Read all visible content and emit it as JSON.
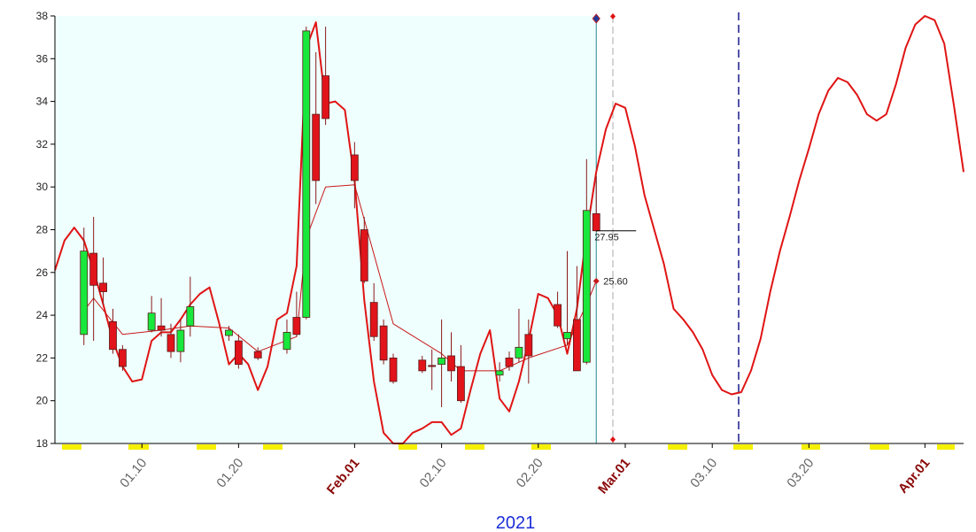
{
  "chart_data": {
    "type": "candlestick",
    "x": [
      4,
      5,
      6,
      7,
      8,
      11,
      12,
      13,
      14,
      15,
      19,
      20,
      22,
      25,
      26,
      27,
      28,
      29,
      32,
      33,
      34,
      35,
      36,
      39,
      40,
      41,
      42,
      43,
      47,
      48,
      49,
      50,
      53,
      54,
      55,
      56,
      57
    ],
    "open": [
      23.1,
      26.9,
      25.5,
      23.7,
      22.4,
      23.3,
      23.5,
      23.1,
      22.3,
      23.5,
      23.05,
      22.8,
      22.3,
      22.4,
      23.9,
      23.9,
      33.4,
      35.2,
      31.5,
      28.0,
      24.6,
      23.5,
      22.0,
      21.9,
      21.65,
      21.7,
      22.1,
      21.6,
      21.2,
      22.0,
      22.0,
      23.1,
      24.5,
      22.9,
      23.8,
      21.8,
      28.75
    ],
    "high": [
      28.1,
      28.6,
      26.7,
      24.3,
      22.6,
      24.9,
      24.8,
      23.6,
      23.8,
      25.8,
      23.5,
      23.1,
      22.5,
      23.8,
      25.1,
      37.5,
      36.3,
      37.5,
      32.1,
      28.6,
      25.5,
      23.8,
      22.2,
      22.1,
      22.4,
      23.8,
      23.2,
      22.6,
      21.8,
      22.3,
      24.3,
      23.8,
      25.1,
      27.0,
      26.3,
      31.3,
      30.5
    ],
    "low": [
      22.6,
      22.8,
      24.5,
      22.2,
      21.4,
      23.2,
      23.0,
      22.0,
      21.8,
      23.0,
      22.8,
      21.5,
      21.9,
      22.2,
      23.0,
      23.8,
      29.2,
      32.9,
      29.0,
      25.5,
      22.8,
      21.7,
      20.8,
      21.3,
      20.5,
      19.7,
      20.9,
      19.9,
      20.9,
      21.4,
      21.8,
      20.8,
      23.4,
      22.6,
      21.4,
      21.7,
      27.9
    ],
    "close": [
      27.0,
      25.4,
      25.1,
      22.4,
      21.6,
      24.1,
      23.3,
      22.3,
      23.3,
      24.4,
      23.3,
      21.7,
      22.0,
      23.2,
      23.1,
      37.3,
      30.3,
      33.2,
      30.3,
      25.6,
      23.0,
      21.9,
      20.9,
      21.4,
      21.6,
      22.0,
      21.4,
      20.0,
      21.4,
      21.6,
      22.5,
      22.1,
      23.5,
      23.2,
      21.4,
      28.9,
      27.95
    ],
    "up_color": "#18e83c",
    "down_color": "#e0141a",
    "lines": [
      {
        "color": "#e01414",
        "width": 2,
        "x": [
          1,
          2,
          3,
          4,
          5,
          6,
          7,
          8,
          9,
          10,
          11,
          12,
          13,
          14,
          15,
          16,
          17,
          18,
          19,
          20,
          21,
          22,
          23,
          24,
          25,
          26,
          27,
          28,
          29,
          30,
          31,
          32,
          33,
          34,
          35,
          36,
          37,
          38,
          39,
          40,
          41,
          42,
          43,
          44,
          45,
          46,
          47,
          48,
          49,
          50,
          51,
          52,
          53,
          54,
          55,
          56,
          57,
          58,
          59,
          60,
          61,
          62,
          63,
          64,
          65,
          66,
          67,
          68,
          69,
          70,
          71,
          72,
          73,
          74,
          75,
          76,
          77,
          78,
          79,
          80,
          81,
          82,
          83,
          84,
          85,
          86,
          87,
          88,
          89,
          90,
          91,
          92,
          93,
          94,
          95
        ],
        "values": [
          26.1,
          27.5,
          28.1,
          27.5,
          26.1,
          24.5,
          22.8,
          21.6,
          20.9,
          21.0,
          22.8,
          23.2,
          23.2,
          23.8,
          24.5,
          25.0,
          25.3,
          23.6,
          21.7,
          22.2,
          21.7,
          20.5,
          21.6,
          23.8,
          24.1,
          26.3,
          36.5,
          37.7,
          33.9,
          34.0,
          33.6,
          30.3,
          24.7,
          20.9,
          18.5,
          18.0,
          18.0,
          18.5,
          18.7,
          19.0,
          19.0,
          18.4,
          18.7,
          20.5,
          22.2,
          23.3,
          20.1,
          19.5,
          20.9,
          22.8,
          25.0,
          24.8,
          24.0,
          22.2,
          24.3,
          27.8,
          30.7,
          32.7,
          33.9,
          33.7,
          31.9,
          29.6,
          28.0,
          26.4,
          24.3,
          23.8,
          23.2,
          22.4,
          21.2,
          20.5,
          20.3,
          20.4,
          21.4,
          22.9,
          25.1,
          27.0,
          28.6,
          30.3,
          31.8,
          33.4,
          34.5,
          35.1,
          34.9,
          34.3,
          33.4,
          33.1,
          33.4,
          34.8,
          36.5,
          37.6,
          38.0,
          37.8,
          36.7,
          33.8,
          30.7
        ]
      },
      {
        "color": "#c81818",
        "width": 1,
        "x": [
          4,
          5,
          8,
          12,
          15,
          19,
          22,
          26,
          27,
          29,
          32,
          36,
          41,
          43,
          47,
          50,
          54,
          56,
          57
        ],
        "values": [
          24.2,
          24.8,
          23.1,
          23.3,
          23.5,
          23.4,
          22.3,
          23.0,
          27.6,
          30.0,
          30.1,
          23.6,
          22.2,
          21.4,
          21.4,
          22.0,
          22.6,
          24.5,
          25.6
        ],
        "value_labels": [
          null,
          null,
          null,
          null,
          null,
          null,
          null,
          null,
          null,
          null,
          null,
          null,
          null,
          null,
          null,
          null,
          null,
          null,
          "25.60"
        ]
      }
    ],
    "xlim": [
      1,
      95
    ],
    "xticks": [
      {
        "value": 10,
        "label": "01.10"
      },
      {
        "value": 20,
        "label": "01.20"
      },
      {
        "value": 32,
        "label": "Feb.01"
      },
      {
        "value": 41,
        "label": "02.10"
      },
      {
        "value": 51,
        "label": "02.20"
      },
      {
        "value": 60,
        "label": "Mar.01"
      },
      {
        "value": 69,
        "label": "03.10"
      },
      {
        "value": 79,
        "label": "03.20"
      },
      {
        "value": 91,
        "label": "Apr.01"
      }
    ],
    "ylim": [
      18,
      38
    ],
    "yticks": [
      18,
      20,
      22,
      24,
      26,
      28,
      30,
      32,
      34,
      36,
      38
    ],
    "x_label": "2021"
  }
}
